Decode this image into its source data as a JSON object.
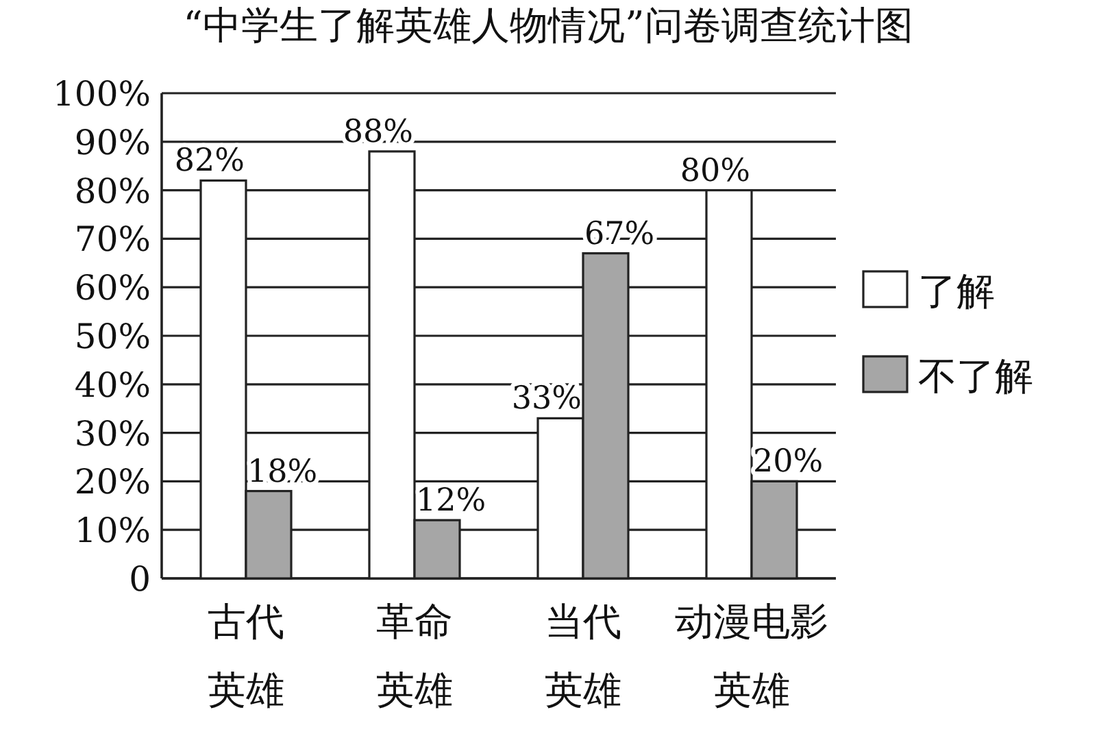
{
  "chart_data": {
    "type": "bar",
    "title": "“中学生了解英雄人物情况”问卷调查统计图",
    "categories": [
      "古代英雄",
      "革命英雄",
      "当代英雄",
      "动漫电影英雄"
    ],
    "series": [
      {
        "name": "了解",
        "color": "#ffffff",
        "values": [
          82,
          88,
          33,
          80
        ],
        "value_labels": [
          "82%",
          "88%",
          "33%",
          "80%"
        ]
      },
      {
        "name": "不了解",
        "color": "#a6a6a6",
        "values": [
          18,
          12,
          67,
          20
        ],
        "value_labels": [
          "18%",
          "12%",
          "67%",
          "20%"
        ]
      }
    ],
    "ylim": [
      0,
      100
    ],
    "yticks": [
      0,
      {
        "value": 10,
        "label": "10%"
      },
      {
        "value": 20,
        "label": "20%"
      },
      {
        "value": 30,
        "label": "30%"
      },
      {
        "value": 40,
        "label": "40%"
      },
      {
        "value": 50,
        "label": "50%"
      },
      {
        "value": 60,
        "label": "60%"
      },
      {
        "value": 70,
        "label": "70%"
      },
      {
        "value": 80,
        "label": "80%"
      },
      {
        "value": 90,
        "label": "90%"
      },
      {
        "value": 100,
        "label": "100%"
      }
    ],
    "grid": "y",
    "legend": "right"
  }
}
